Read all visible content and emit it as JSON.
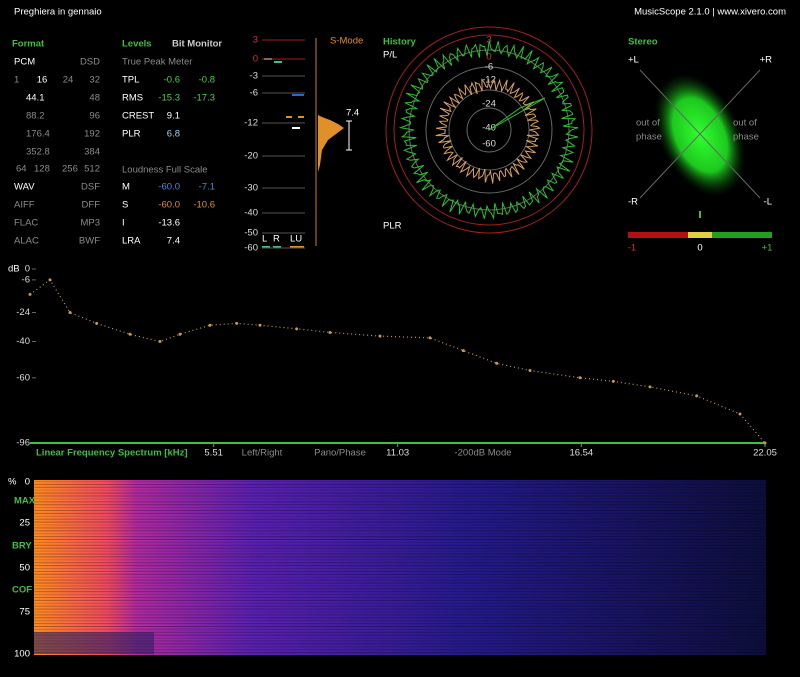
{
  "header": {
    "title": "Preghiera in gennaio",
    "app": "MusicScope 2.1.0 | www.xivero.com"
  },
  "format": {
    "title": "Format",
    "pcm": "PCM",
    "dsd": "DSD",
    "bits": [
      "1",
      "16",
      "24",
      "32"
    ],
    "rates": [
      [
        "44.1",
        "48"
      ],
      [
        "88.2",
        "96"
      ],
      [
        "176.4",
        "192"
      ],
      [
        "352.8",
        "384"
      ]
    ],
    "dsd_rates": [
      "64",
      "128",
      "256",
      "512"
    ],
    "files": [
      [
        "WAV",
        "DSF"
      ],
      [
        "AIFF",
        "DFF"
      ],
      [
        "FLAC",
        "MP3"
      ],
      [
        "ALAC",
        "BWF"
      ]
    ]
  },
  "levels": {
    "title": "Levels",
    "bit_monitor": "Bit Monitor",
    "peak_title": "True Peak Meter",
    "peak_rows": [
      [
        "TPL",
        "-0.6",
        "-0.8"
      ],
      [
        "RMS",
        "-15.3",
        "-17.3"
      ],
      [
        "CREST",
        "9.1"
      ],
      [
        "PLR",
        "6.8"
      ]
    ],
    "loudness_title": "Loudness Full Scale",
    "loudness_rows": [
      [
        "M",
        "-60.0",
        "-7.1"
      ],
      [
        "S",
        "-60.0",
        "-10.6"
      ],
      [
        "I",
        "-13.6"
      ],
      [
        "LRA",
        "7.4"
      ]
    ]
  },
  "meter": {
    "scale": [
      "3",
      "0",
      "-3",
      "-6",
      "-12",
      "-20",
      "-30",
      "-40",
      "-50",
      "-60"
    ],
    "mode": "S-Mode",
    "value": "7.4",
    "channels": [
      "L",
      "R",
      "LU"
    ]
  },
  "history": {
    "title": "History",
    "top_label": "P/L",
    "bottom_label": "PLR",
    "rings": [
      "3",
      "0",
      "-6",
      "-12",
      "-24",
      "-40",
      "-60"
    ]
  },
  "stereo": {
    "title": "Stereo",
    "corners": [
      "+L",
      "+R",
      "-R",
      "-L"
    ],
    "phase_left": [
      "out of",
      "phase"
    ],
    "phase_right": [
      "out of",
      "phase"
    ],
    "balance": [
      "-1",
      "0",
      "+1"
    ]
  },
  "chart_data": {
    "type": "line",
    "title": "Linear Frequency Spectrum [kHz]",
    "y_label": "dB",
    "annotations": [
      "Left/Right",
      "Pano/Phase",
      "-200dB Mode"
    ],
    "x": [
      0,
      0.6,
      1.2,
      2,
      3,
      3.9,
      4.5,
      5.4,
      6.2,
      6.9,
      8,
      9,
      10.5,
      12,
      13,
      14,
      15,
      16.5,
      17.5,
      18.6,
      20,
      21.3,
      22.05
    ],
    "values": [
      -14,
      -6,
      -24,
      -30,
      -36,
      -40,
      -36,
      -31,
      -30,
      -31,
      -33,
      -35,
      -37,
      -38,
      -45,
      -52,
      -56,
      -60,
      -62,
      -65,
      -70,
      -80,
      -96
    ],
    "color": "#c89a50",
    "xlim": [
      0,
      22.05
    ],
    "xticks": [
      5.51,
      11.03,
      16.54,
      22.05
    ],
    "ylim": [
      -96,
      0
    ],
    "yticks": [
      0,
      -6,
      -24,
      -40,
      -60,
      -96
    ]
  },
  "spectrogram": {
    "unit": "%",
    "ticks": [
      "0",
      "25",
      "50",
      "75",
      "100"
    ],
    "markers": [
      "MAX",
      "BRY",
      "COF"
    ]
  }
}
